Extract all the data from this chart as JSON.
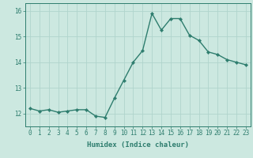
{
  "x": [
    0,
    1,
    2,
    3,
    4,
    5,
    6,
    7,
    8,
    9,
    10,
    11,
    12,
    13,
    14,
    15,
    16,
    17,
    18,
    19,
    20,
    21,
    22,
    23
  ],
  "y": [
    12.2,
    12.1,
    12.15,
    12.05,
    12.1,
    12.15,
    12.15,
    11.9,
    11.85,
    12.6,
    13.3,
    14.0,
    14.45,
    15.9,
    15.25,
    15.7,
    15.7,
    15.05,
    14.85,
    14.4,
    14.3,
    14.1,
    14.0,
    13.9
  ],
  "line_color": "#2e7d6e",
  "marker": "D",
  "marker_size": 2.2,
  "bg_color": "#cce8e0",
  "grid_color": "#b0d4cc",
  "axis_color": "#2e7d6e",
  "xlabel": "Humidex (Indice chaleur)",
  "xlim": [
    -0.5,
    23.5
  ],
  "ylim": [
    11.5,
    16.3
  ],
  "yticks": [
    12,
    13,
    14,
    15,
    16
  ],
  "xticks": [
    0,
    1,
    2,
    3,
    4,
    5,
    6,
    7,
    8,
    9,
    10,
    11,
    12,
    13,
    14,
    15,
    16,
    17,
    18,
    19,
    20,
    21,
    22,
    23
  ],
  "tick_fontsize": 5.5,
  "xlabel_fontsize": 6.5,
  "linewidth": 1.0
}
